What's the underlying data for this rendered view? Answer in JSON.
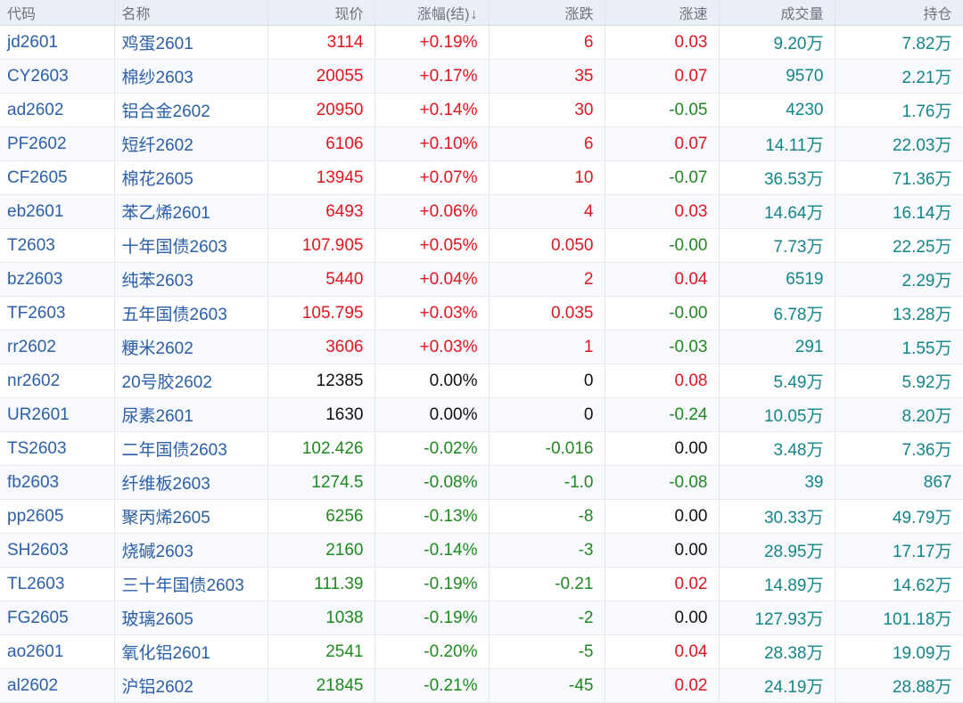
{
  "table": {
    "headers": {
      "code": "代码",
      "name": "名称",
      "price": "现价",
      "change_pct": "涨幅(结)",
      "sort_arrow": "↓",
      "change": "涨跌",
      "speed": "涨速",
      "volume": "成交量",
      "open_interest": "持仓"
    },
    "colors": {
      "up": "#e0161e",
      "down": "#1e8a1e",
      "flat": "#111111",
      "code_link": "#2b5fa8",
      "volume": "#138589",
      "header_bg": "#eaeef5"
    },
    "rows": [
      {
        "code": "jd2601",
        "name": "鸡蛋2601",
        "price": "3114",
        "change_pct": "+0.19%",
        "change": "6",
        "speed": "0.03",
        "volume": "9.20万",
        "open_interest": "7.82万",
        "trend": "up",
        "speed_trend": "up"
      },
      {
        "code": "CY2603",
        "name": "棉纱2603",
        "price": "20055",
        "change_pct": "+0.17%",
        "change": "35",
        "speed": "0.07",
        "volume": "9570",
        "open_interest": "2.21万",
        "trend": "up",
        "speed_trend": "up"
      },
      {
        "code": "ad2602",
        "name": "铝合金2602",
        "price": "20950",
        "change_pct": "+0.14%",
        "change": "30",
        "speed": "-0.05",
        "volume": "4230",
        "open_interest": "1.76万",
        "trend": "up",
        "speed_trend": "down"
      },
      {
        "code": "PF2602",
        "name": "短纤2602",
        "price": "6106",
        "change_pct": "+0.10%",
        "change": "6",
        "speed": "0.07",
        "volume": "14.11万",
        "open_interest": "22.03万",
        "trend": "up",
        "speed_trend": "up"
      },
      {
        "code": "CF2605",
        "name": "棉花2605",
        "price": "13945",
        "change_pct": "+0.07%",
        "change": "10",
        "speed": "-0.07",
        "volume": "36.53万",
        "open_interest": "71.36万",
        "trend": "up",
        "speed_trend": "down"
      },
      {
        "code": "eb2601",
        "name": "苯乙烯2601",
        "price": "6493",
        "change_pct": "+0.06%",
        "change": "4",
        "speed": "0.03",
        "volume": "14.64万",
        "open_interest": "16.14万",
        "trend": "up",
        "speed_trend": "up"
      },
      {
        "code": "T2603",
        "name": "十年国债2603",
        "price": "107.905",
        "change_pct": "+0.05%",
        "change": "0.050",
        "speed": "-0.00",
        "volume": "7.73万",
        "open_interest": "22.25万",
        "trend": "up",
        "speed_trend": "down"
      },
      {
        "code": "bz2603",
        "name": "纯苯2603",
        "price": "5440",
        "change_pct": "+0.04%",
        "change": "2",
        "speed": "0.04",
        "volume": "6519",
        "open_interest": "2.29万",
        "trend": "up",
        "speed_trend": "up"
      },
      {
        "code": "TF2603",
        "name": "五年国债2603",
        "price": "105.795",
        "change_pct": "+0.03%",
        "change": "0.035",
        "speed": "-0.00",
        "volume": "6.78万",
        "open_interest": "13.28万",
        "trend": "up",
        "speed_trend": "down"
      },
      {
        "code": "rr2602",
        "name": "粳米2602",
        "price": "3606",
        "change_pct": "+0.03%",
        "change": "1",
        "speed": "-0.03",
        "volume": "291",
        "open_interest": "1.55万",
        "trend": "up",
        "speed_trend": "down"
      },
      {
        "code": "nr2602",
        "name": "20号胶2602",
        "price": "12385",
        "change_pct": "0.00%",
        "change": "0",
        "speed": "0.08",
        "volume": "5.49万",
        "open_interest": "5.92万",
        "trend": "flat",
        "speed_trend": "up"
      },
      {
        "code": "UR2601",
        "name": "尿素2601",
        "price": "1630",
        "change_pct": "0.00%",
        "change": "0",
        "speed": "-0.24",
        "volume": "10.05万",
        "open_interest": "8.20万",
        "trend": "flat",
        "speed_trend": "down"
      },
      {
        "code": "TS2603",
        "name": "二年国债2603",
        "price": "102.426",
        "change_pct": "-0.02%",
        "change": "-0.016",
        "speed": "0.00",
        "volume": "3.48万",
        "open_interest": "7.36万",
        "trend": "down",
        "speed_trend": "flat"
      },
      {
        "code": "fb2603",
        "name": "纤维板2603",
        "price": "1274.5",
        "change_pct": "-0.08%",
        "change": "-1.0",
        "speed": "-0.08",
        "volume": "39",
        "open_interest": "867",
        "trend": "down",
        "speed_trend": "down"
      },
      {
        "code": "pp2605",
        "name": "聚丙烯2605",
        "price": "6256",
        "change_pct": "-0.13%",
        "change": "-8",
        "speed": "0.00",
        "volume": "30.33万",
        "open_interest": "49.79万",
        "trend": "down",
        "speed_trend": "flat"
      },
      {
        "code": "SH2603",
        "name": "烧碱2603",
        "price": "2160",
        "change_pct": "-0.14%",
        "change": "-3",
        "speed": "0.00",
        "volume": "28.95万",
        "open_interest": "17.17万",
        "trend": "down",
        "speed_trend": "flat"
      },
      {
        "code": "TL2603",
        "name": "三十年国债2603",
        "price": "111.39",
        "change_pct": "-0.19%",
        "change": "-0.21",
        "speed": "0.02",
        "volume": "14.89万",
        "open_interest": "14.62万",
        "trend": "down",
        "speed_trend": "up"
      },
      {
        "code": "FG2605",
        "name": "玻璃2605",
        "price": "1038",
        "change_pct": "-0.19%",
        "change": "-2",
        "speed": "0.00",
        "volume": "127.93万",
        "open_interest": "101.18万",
        "trend": "down",
        "speed_trend": "flat"
      },
      {
        "code": "ao2601",
        "name": "氧化铝2601",
        "price": "2541",
        "change_pct": "-0.20%",
        "change": "-5",
        "speed": "0.04",
        "volume": "28.38万",
        "open_interest": "19.09万",
        "trend": "down",
        "speed_trend": "up"
      },
      {
        "code": "al2602",
        "name": "沪铝2602",
        "price": "21845",
        "change_pct": "-0.21%",
        "change": "-45",
        "speed": "0.02",
        "volume": "24.19万",
        "open_interest": "28.88万",
        "trend": "down",
        "speed_trend": "up"
      }
    ]
  }
}
